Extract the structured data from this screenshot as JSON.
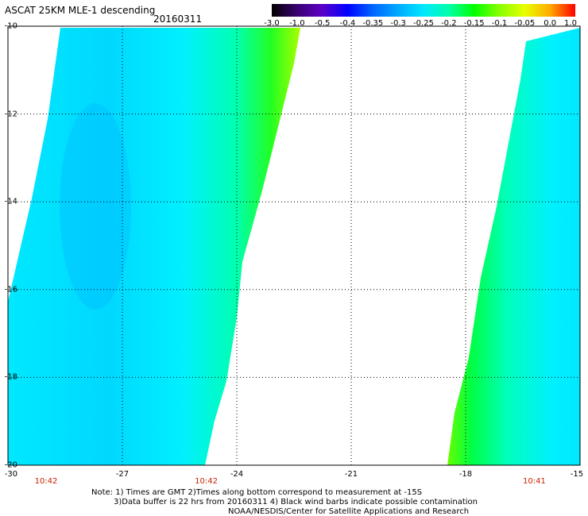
{
  "header": {
    "title": "ASCAT 25KM MLE-1 descending",
    "date": "20160311"
  },
  "colorbar": {
    "labels": [
      "-3.0",
      "-1.0",
      "-0.5",
      "-0.4",
      "-0.35",
      "-0.3",
      "-0.25",
      "-0.2",
      "-0.15",
      "-0.1",
      "-0.05",
      "0.0",
      "1.0"
    ],
    "colors": [
      "#000000",
      "#3a0070",
      "#5a00c8",
      "#0000ff",
      "#0066ff",
      "#00aaff",
      "#00e8ff",
      "#00ffaa",
      "#00ff00",
      "#88ff00",
      "#e8ff00",
      "#ffaa00",
      "#ff0000"
    ]
  },
  "map": {
    "lat_range": [
      -20,
      -10
    ],
    "lon_range": [
      -30,
      -15
    ],
    "lat_labels": [
      "-10",
      "-12",
      "-14",
      "-16",
      "-18",
      "-20"
    ],
    "lon_labels": [
      "-30",
      "-27",
      "-24",
      "-21",
      "-18",
      "-15"
    ],
    "time_labels": [
      {
        "lon": -29,
        "text": "10:42"
      },
      {
        "lon": -24.8,
        "text": "10:42"
      },
      {
        "lon": -16.2,
        "text": "10:41"
      }
    ],
    "grid": "dotted"
  },
  "notes": {
    "line1": "Note: 1) Times are GMT 2)Times along bottom correspond to measurement at -15S",
    "line2": "3)Data buffer is 22 hrs from 20160311 4) Black wind barbs indicate possible contamination",
    "line3": "NOAA/NESDIS/Center for Satellite Applications and Research"
  }
}
